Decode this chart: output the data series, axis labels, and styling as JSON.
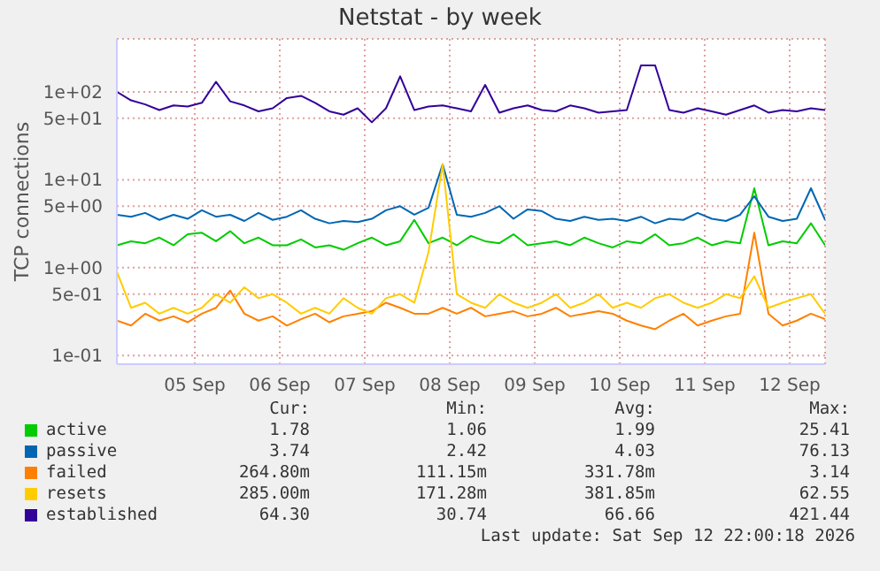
{
  "chart_data": {
    "type": "line",
    "title": "Netstat - by week",
    "ylabel": "TCP connections",
    "x": [
      "2026-09-04T14:00",
      "2026-09-04T18:00",
      "2026-09-04T22:00",
      "2026-09-05T02:00",
      "2026-09-05T06:00",
      "2026-09-05T10:00",
      "2026-09-05T14:00",
      "2026-09-05T18:00",
      "2026-09-05T22:00",
      "2026-09-06T02:00",
      "2026-09-06T06:00",
      "2026-09-06T10:00",
      "2026-09-06T14:00",
      "2026-09-06T18:00",
      "2026-09-06T22:00",
      "2026-09-07T02:00",
      "2026-09-07T06:00",
      "2026-09-07T10:00",
      "2026-09-07T14:00",
      "2026-09-07T18:00",
      "2026-09-07T22:00",
      "2026-09-08T02:00",
      "2026-09-08T06:00",
      "2026-09-08T10:00",
      "2026-09-08T14:00",
      "2026-09-08T18:00",
      "2026-09-08T22:00",
      "2026-09-09T02:00",
      "2026-09-09T06:00",
      "2026-09-09T10:00",
      "2026-09-09T14:00",
      "2026-09-09T18:00",
      "2026-09-09T22:00",
      "2026-09-10T02:00",
      "2026-09-10T06:00",
      "2026-09-10T10:00",
      "2026-09-10T14:00",
      "2026-09-10T18:00",
      "2026-09-10T22:00",
      "2026-09-11T02:00",
      "2026-09-11T06:00",
      "2026-09-11T10:00",
      "2026-09-11T14:00",
      "2026-09-11T18:00",
      "2026-09-11T22:00",
      "2026-09-12T02:00",
      "2026-09-12T06:00",
      "2026-09-12T10:00",
      "2026-09-12T14:00",
      "2026-09-12T18:00",
      "2026-09-12T22:00"
    ],
    "series": [
      {
        "name": "active",
        "color": "#00cc00",
        "values": [
          1.8,
          2,
          1.9,
          2.2,
          1.8,
          2.4,
          2.5,
          2,
          2.6,
          1.9,
          2.2,
          1.8,
          1.8,
          2.1,
          1.7,
          1.8,
          1.6,
          1.9,
          2.2,
          1.8,
          2,
          3.5,
          1.9,
          2.2,
          1.8,
          2.3,
          2,
          1.9,
          2.4,
          1.8,
          1.9,
          2,
          1.8,
          2.2,
          1.9,
          1.7,
          2,
          1.9,
          2.4,
          1.8,
          1.9,
          2.2,
          1.8,
          2,
          1.9,
          8,
          1.8,
          2,
          1.9,
          3.2,
          1.8
        ]
      },
      {
        "name": "passive",
        "color": "#0066b3",
        "values": [
          4,
          3.8,
          4.2,
          3.5,
          4,
          3.6,
          4.5,
          3.8,
          4,
          3.4,
          4.2,
          3.5,
          3.8,
          4.5,
          3.6,
          3.2,
          3.4,
          3.3,
          3.6,
          4.5,
          5,
          4,
          4.8,
          15,
          4,
          3.8,
          4.2,
          5,
          3.6,
          4.6,
          4.4,
          3.6,
          3.4,
          3.8,
          3.5,
          3.6,
          3.4,
          3.8,
          3.2,
          3.6,
          3.5,
          4.2,
          3.6,
          3.4,
          4,
          6.5,
          3.8,
          3.4,
          3.6,
          8,
          3.5
        ]
      },
      {
        "name": "failed",
        "color": "#ff8000",
        "values": [
          0.25,
          0.22,
          0.3,
          0.25,
          0.28,
          0.24,
          0.3,
          0.35,
          0.55,
          0.3,
          0.25,
          0.28,
          0.22,
          0.26,
          0.3,
          0.24,
          0.28,
          0.3,
          0.32,
          0.4,
          0.35,
          0.3,
          0.3,
          0.35,
          0.3,
          0.35,
          0.28,
          0.3,
          0.32,
          0.28,
          0.3,
          0.35,
          0.28,
          0.3,
          0.32,
          0.3,
          0.25,
          0.22,
          0.2,
          0.25,
          0.3,
          0.22,
          0.25,
          0.28,
          0.3,
          2.5,
          0.3,
          0.22,
          0.25,
          0.3,
          0.26
        ]
      },
      {
        "name": "resets",
        "color": "#ffcc00",
        "values": [
          0.9,
          0.35,
          0.4,
          0.3,
          0.35,
          0.3,
          0.35,
          0.5,
          0.4,
          0.6,
          0.45,
          0.5,
          0.4,
          0.3,
          0.35,
          0.3,
          0.45,
          0.35,
          0.3,
          0.45,
          0.5,
          0.4,
          1.5,
          15,
          0.5,
          0.4,
          0.35,
          0.5,
          0.4,
          0.35,
          0.4,
          0.5,
          0.35,
          0.4,
          0.5,
          0.35,
          0.4,
          0.35,
          0.45,
          0.5,
          0.4,
          0.35,
          0.4,
          0.5,
          0.45,
          0.8,
          0.35,
          0.4,
          0.45,
          0.5,
          0.3
        ]
      },
      {
        "name": "established",
        "color": "#330099",
        "values": [
          100,
          80,
          72,
          62,
          70,
          68,
          75,
          130,
          78,
          70,
          60,
          65,
          85,
          90,
          75,
          60,
          55,
          65,
          45,
          65,
          150,
          62,
          68,
          70,
          65,
          60,
          120,
          58,
          65,
          70,
          62,
          60,
          70,
          65,
          58,
          60,
          62,
          200,
          200,
          62,
          58,
          65,
          60,
          55,
          62,
          70,
          58,
          62,
          60,
          65,
          62
        ]
      }
    ],
    "xlim": [
      "2026-09-04T14:00",
      "2026-09-12T22:00"
    ],
    "xticks": [
      {
        "value": "2026-09-05T12:00",
        "label": "05 Sep"
      },
      {
        "value": "2026-09-06T12:00",
        "label": "06 Sep"
      },
      {
        "value": "2026-09-07T12:00",
        "label": "07 Sep"
      },
      {
        "value": "2026-09-08T12:00",
        "label": "08 Sep"
      },
      {
        "value": "2026-09-09T12:00",
        "label": "09 Sep"
      },
      {
        "value": "2026-09-10T12:00",
        "label": "10 Sep"
      },
      {
        "value": "2026-09-11T12:00",
        "label": "11 Sep"
      },
      {
        "value": "2026-09-12T12:00",
        "label": "12 Sep"
      }
    ],
    "ylim": [
      0.08,
      400
    ],
    "yticks": [
      {
        "value": 0.1,
        "label": "1e-01"
      },
      {
        "value": 0.5,
        "label": "5e-01"
      },
      {
        "value": 1,
        "label": "1e+00"
      },
      {
        "value": 5,
        "label": "5e+00"
      },
      {
        "value": 10,
        "label": "1e+01"
      },
      {
        "value": 50,
        "label": "5e+01"
      },
      {
        "value": 100,
        "label": "1e+02"
      }
    ],
    "log": "y",
    "grid": true,
    "legend": "bottom",
    "marker": "none",
    "line_style": "solid",
    "annotations": [
      "Cur:",
      "Min:",
      "Avg:",
      "Max:",
      "1.78",
      "1.06",
      "1.99",
      "25.41",
      "3.74",
      "2.42",
      "4.03",
      "76.13",
      "264.80m",
      "111.15m",
      "331.78m",
      "3.14",
      "285.00m",
      "171.28m",
      "381.85m",
      "62.55",
      "64.30",
      "30.74",
      "66.66",
      "421.44",
      "Last update: Sat Sep 12 22:00:18 2026"
    ]
  }
}
